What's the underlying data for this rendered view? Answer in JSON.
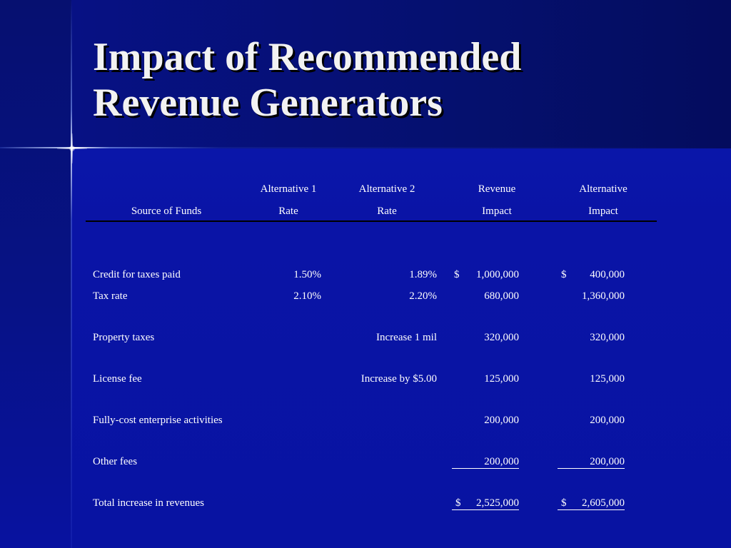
{
  "title": {
    "line1": "Impact of Recommended",
    "line2": "Revenue Generators"
  },
  "table": {
    "headers": {
      "source": "Source of Funds",
      "alt1_top": "Alternative 1",
      "alt1_bottom": "Rate",
      "alt2_top": "Alternative 2",
      "alt2_bottom": "Rate",
      "rev_top": "Revenue",
      "rev_bottom": "Impact",
      "altimp_top": "Alternative",
      "altimp_bottom": "Impact"
    },
    "rows": [
      {
        "source": "Credit for taxes paid",
        "alt1": "1.50%",
        "alt2": "1.89%",
        "rev_sym": "$",
        "rev": "1,000,000",
        "altimp_sym": "$",
        "altimp": "400,000"
      },
      {
        "source": "Tax rate",
        "alt1": "2.10%",
        "alt2": "2.20%",
        "rev_sym": "",
        "rev": "680,000",
        "altimp_sym": "",
        "altimp": "1,360,000"
      },
      {
        "source": "Property taxes",
        "alt1": "",
        "alt2": "Increase 1 mil",
        "rev_sym": "",
        "rev": "320,000",
        "altimp_sym": "",
        "altimp": "320,000"
      },
      {
        "source": "License fee",
        "alt1": "",
        "alt2": "Increase by $5.00",
        "rev_sym": "",
        "rev": "125,000",
        "altimp_sym": "",
        "altimp": "125,000"
      },
      {
        "source": "Fully-cost enterprise activities",
        "alt1": "",
        "alt2": "",
        "rev_sym": "",
        "rev": "200,000",
        "altimp_sym": "",
        "altimp": "200,000"
      },
      {
        "source": "Other fees",
        "alt1": "",
        "alt2": "",
        "rev_sym": "",
        "rev": "200,000",
        "altimp_sym": "",
        "altimp": "200,000"
      },
      {
        "source": "Total increase in revenues",
        "alt1": "",
        "alt2": "",
        "rev_sym": "$",
        "rev": "2,525,000",
        "altimp_sym": "$",
        "altimp": "2,605,000"
      }
    ]
  }
}
